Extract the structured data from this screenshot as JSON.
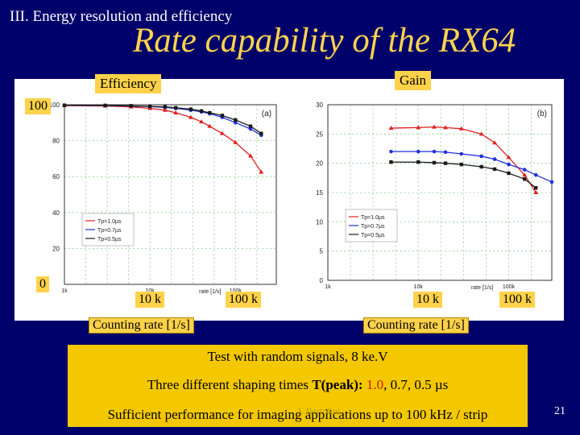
{
  "slide": {
    "section": "III. Energy resolution and efficiency",
    "title": "Rate capability of the RX64",
    "number": "21"
  },
  "labels": {
    "efficiency": "Efficiency",
    "gain": "Gain",
    "y100": "100",
    "y0": "0",
    "left_10k": "10 k",
    "left_100k": "100 k",
    "right_10k": "10 k",
    "right_100k": "100 k",
    "left_xlabel": "Counting rate [1/s]",
    "right_xlabel": "Counting rate [1/s]"
  },
  "summary": {
    "line1": "Test with random signals, 8 ke.V",
    "line2_prefix": "Three different shaping times ",
    "line2_tpeak": "T(peak): ",
    "line2_v1": "1.0",
    "line2_rest": ", 0.7, 0.5 µs",
    "line3": "Sufficient performance for imaging applications up to 100 kHz / strip",
    "watermark": "J. Bertolini"
  },
  "chart_data": [
    {
      "type": "line",
      "panel": "(a)",
      "xscale": "log",
      "xlim": [
        1000,
        300000
      ],
      "ylim": [
        0,
        100
      ],
      "y_ticks": [
        20,
        40,
        60,
        80,
        100
      ],
      "x_ticks": [
        "1k",
        "10k",
        "100k"
      ],
      "xlabel_inner": "rate [1/s]",
      "legend": "bottom-left",
      "series": [
        {
          "name": "Tp=1.0µs",
          "color": "#e02020",
          "marker": "triangle",
          "x": [
            1000,
            3000,
            6000,
            10000,
            15000,
            20000,
            30000,
            40000,
            50000,
            70000,
            100000,
            150000,
            200000
          ],
          "y": [
            99.5,
            99.3,
            98.8,
            98.0,
            97.0,
            95.5,
            93.0,
            90.5,
            88.0,
            84.0,
            79.0,
            71.5,
            62.5
          ]
        },
        {
          "name": "Tp=0.7µs",
          "color": "#2030e0",
          "marker": "circle",
          "x": [
            1000,
            3000,
            6000,
            10000,
            15000,
            20000,
            30000,
            40000,
            50000,
            70000,
            100000,
            150000,
            200000
          ],
          "y": [
            99.6,
            99.5,
            99.3,
            99.0,
            98.5,
            98.0,
            97.0,
            96.0,
            95.0,
            93.0,
            90.0,
            86.5,
            83.0
          ]
        },
        {
          "name": "Tp=0.5µs",
          "color": "#1a1a1a",
          "marker": "square",
          "x": [
            1000,
            3000,
            6000,
            10000,
            15000,
            20000,
            30000,
            40000,
            50000,
            70000,
            100000,
            150000,
            200000
          ],
          "y": [
            99.7,
            99.6,
            99.4,
            99.1,
            98.8,
            98.3,
            97.5,
            96.5,
            95.5,
            94.0,
            91.5,
            88.0,
            84.0
          ]
        }
      ]
    },
    {
      "type": "line",
      "panel": "(b)",
      "xscale": "log",
      "xlim": [
        1000,
        300000
      ],
      "ylim": [
        0,
        30
      ],
      "y_ticks": [
        0,
        5,
        10,
        15,
        20,
        25,
        30
      ],
      "x_ticks": [
        "1k",
        "10k",
        "100k"
      ],
      "xlabel_inner": "rate [1/s]",
      "legend": "bottom-left",
      "series": [
        {
          "name": "Tp=1.0µs",
          "color": "#e02020",
          "marker": "triangle",
          "x": [
            5000,
            10000,
            15000,
            20000,
            30000,
            50000,
            70000,
            100000,
            150000,
            200000
          ],
          "y": [
            26.0,
            26.1,
            26.2,
            26.1,
            25.9,
            25.0,
            23.5,
            21.0,
            18.0,
            15.0
          ]
        },
        {
          "name": "Tp=0.7µs",
          "color": "#2030e0",
          "marker": "circle",
          "x": [
            5000,
            10000,
            15000,
            20000,
            30000,
            50000,
            70000,
            100000,
            150000,
            200000,
            300000
          ],
          "y": [
            22.0,
            22.0,
            22.0,
            21.9,
            21.6,
            21.2,
            20.7,
            19.8,
            18.9,
            18.0,
            16.8
          ]
        },
        {
          "name": "Tp=0.5µs",
          "color": "#1a1a1a",
          "marker": "square",
          "x": [
            5000,
            10000,
            15000,
            20000,
            30000,
            50000,
            70000,
            100000,
            150000,
            200000
          ],
          "y": [
            20.2,
            20.2,
            20.1,
            20.0,
            19.8,
            19.4,
            19.0,
            18.3,
            17.3,
            15.8
          ]
        }
      ]
    }
  ]
}
